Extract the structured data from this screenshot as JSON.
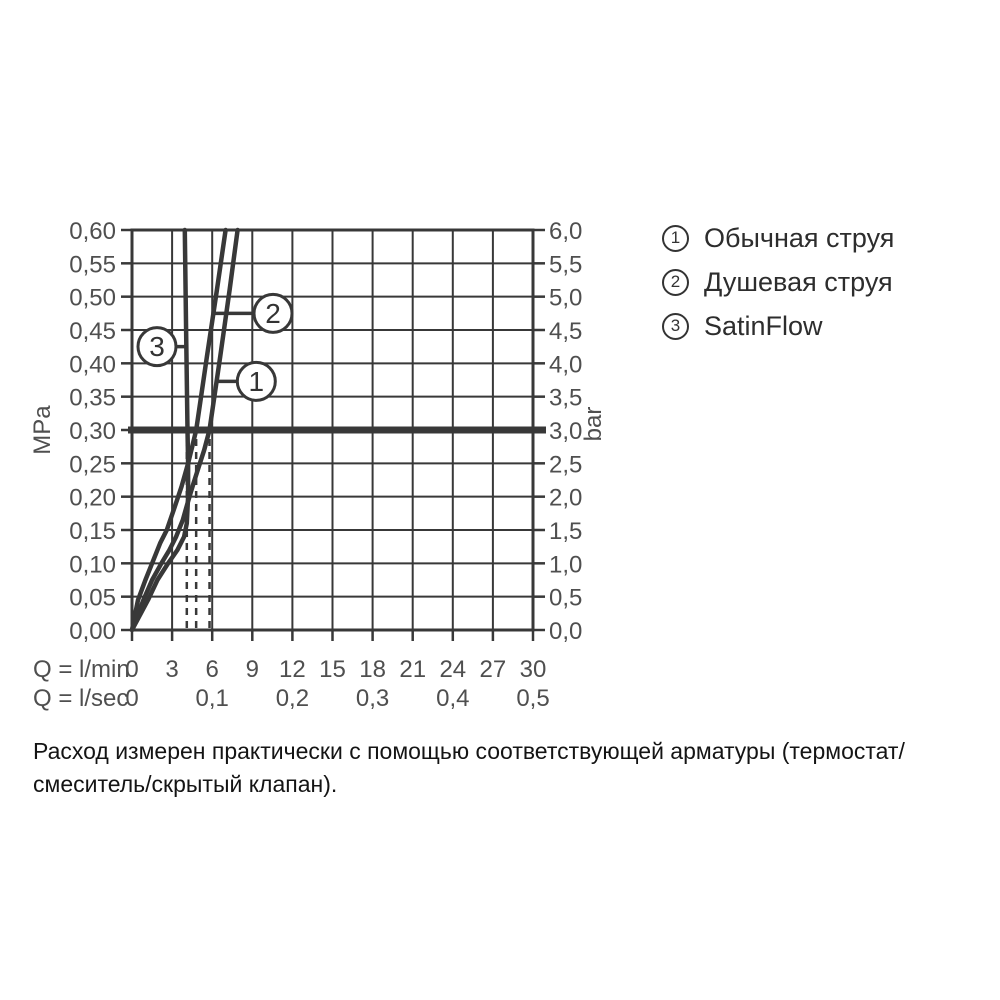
{
  "legend": {
    "items": [
      {
        "number": "1",
        "label": "Обычная струя"
      },
      {
        "number": "2",
        "label": "Душевая струя"
      },
      {
        "number": "3",
        "label": "SatinFlow"
      }
    ]
  },
  "caption": {
    "lines": [
      "Расход измерен практически с помощью соответствующей арматуры (термостат/",
      "смеситель/скрытый клапан)."
    ]
  },
  "chart_data": {
    "type": "line",
    "title": "",
    "x_axis": {
      "row1_label": "Q = l/min",
      "row1_ticks": [
        0,
        3,
        6,
        9,
        12,
        15,
        18,
        21,
        24,
        27,
        30
      ],
      "row2_label": "Q = l/sec",
      "row2_ticks": [
        {
          "text": "0",
          "lmin": 0
        },
        {
          "text": "0,1",
          "lmin": 6
        },
        {
          "text": "0,2",
          "lmin": 12
        },
        {
          "text": "0,3",
          "lmin": 18
        },
        {
          "text": "0,4",
          "lmin": 24
        },
        {
          "text": "0,5",
          "lmin": 30
        }
      ],
      "range_lmin": [
        0,
        30
      ]
    },
    "y_axis_left": {
      "unit": "MPa",
      "ticks": [
        "0,60",
        "0,55",
        "0,50",
        "0,45",
        "0,40",
        "0,35",
        "0,30",
        "0,25",
        "0,20",
        "0,15",
        "0,10",
        "0,05",
        "0,00"
      ],
      "range_mpa": [
        0,
        0.6
      ]
    },
    "y_axis_right": {
      "unit": "bar",
      "ticks": [
        "6,0",
        "5,5",
        "5,0",
        "4,5",
        "4,0",
        "3,5",
        "3,0",
        "2,5",
        "2,0",
        "1,5",
        "1,0",
        "0,5",
        "0,0"
      ],
      "range_bar": [
        0,
        6
      ]
    },
    "grid": {
      "on": true,
      "x_step_lmin": 3,
      "y_step_mpa": 0.05
    },
    "reference_line": {
      "mpa": 0.3,
      "bar": 3.0
    },
    "drop_lines_lmin": [
      4.1,
      4.8,
      5.8
    ],
    "series": [
      {
        "id": "1",
        "name": "Обычная струя",
        "points_lmin_mpa": [
          [
            0,
            0
          ],
          [
            0.85,
            0.045
          ],
          [
            1.5,
            0.075
          ],
          [
            2.2,
            0.1
          ],
          [
            2.8,
            0.12
          ],
          [
            3.3,
            0.14
          ],
          [
            3.8,
            0.165
          ],
          [
            4.15,
            0.19
          ],
          [
            4.6,
            0.22
          ],
          [
            5.0,
            0.245
          ],
          [
            5.4,
            0.27
          ],
          [
            5.8,
            0.3
          ],
          [
            6.6,
            0.41
          ],
          [
            7.3,
            0.51
          ],
          [
            7.9,
            0.6
          ]
        ],
        "callout": {
          "circle_lmin": 9.3,
          "circle_mpa": 0.373,
          "attach_lmin": 6.35
        }
      },
      {
        "id": "2",
        "name": "Душевая струя",
        "points_lmin_mpa": [
          [
            0,
            0
          ],
          [
            0.45,
            0.045
          ],
          [
            1.0,
            0.075
          ],
          [
            1.5,
            0.1
          ],
          [
            2.1,
            0.13
          ],
          [
            2.6,
            0.15
          ],
          [
            3.2,
            0.185
          ],
          [
            3.7,
            0.215
          ],
          [
            4.2,
            0.25
          ],
          [
            4.5,
            0.275
          ],
          [
            4.8,
            0.3
          ],
          [
            5.6,
            0.41
          ],
          [
            6.35,
            0.51
          ],
          [
            7.0,
            0.6
          ]
        ],
        "callout": {
          "circle_lmin": 10.55,
          "circle_mpa": 0.475,
          "attach_lmin": 6.05
        }
      },
      {
        "id": "3",
        "name": "SatinFlow",
        "points_lmin_mpa": [
          [
            0,
            0
          ],
          [
            1.2,
            0.045
          ],
          [
            1.9,
            0.075
          ],
          [
            2.7,
            0.1
          ],
          [
            3.4,
            0.12
          ],
          [
            3.9,
            0.14
          ],
          [
            4.1,
            0.16
          ],
          [
            4.2,
            0.2
          ],
          [
            4.2,
            0.25
          ],
          [
            4.15,
            0.3
          ],
          [
            4.05,
            0.45
          ],
          [
            3.95,
            0.6
          ]
        ],
        "callout": {
          "circle_lmin": 1.87,
          "circle_mpa": 0.425,
          "attach_lmin": 4.12
        }
      }
    ]
  },
  "colors": {
    "line": "#383838",
    "axis_label": "#4f4f4f",
    "legend_text": "#2d2d2d",
    "caption_text": "#141414",
    "background": "#ffffff"
  }
}
